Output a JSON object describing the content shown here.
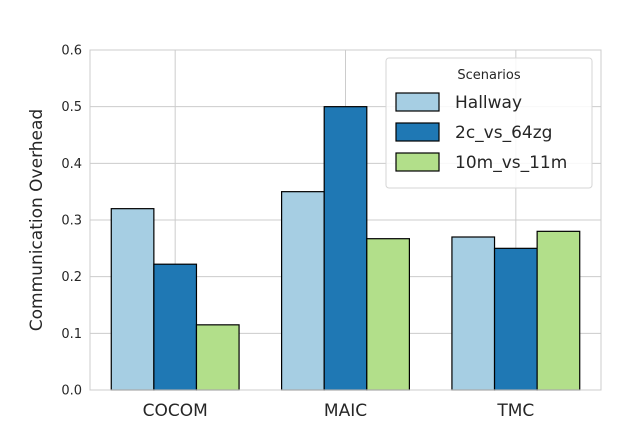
{
  "chart_data": {
    "type": "bar",
    "categories": [
      "COCOM",
      "MAIC",
      "TMC"
    ],
    "series": [
      {
        "name": "Hallway",
        "values": [
          0.32,
          0.35,
          0.27
        ],
        "color": "#a6cee3"
      },
      {
        "name": "2c_vs_64zg",
        "values": [
          0.222,
          0.5,
          0.25
        ],
        "color": "#1f78b4"
      },
      {
        "name": "10m_vs_11m",
        "values": [
          0.115,
          0.267,
          0.28
        ],
        "color": "#b2df8a"
      }
    ],
    "title": "",
    "xlabel": "",
    "ylabel": "Communication Overhead",
    "ylim": [
      0,
      0.6
    ],
    "yticks": [
      "0.0",
      "0.1",
      "0.2",
      "0.3",
      "0.4",
      "0.5",
      "0.6"
    ],
    "grid": true,
    "legend": {
      "title": "Scenarios",
      "placement": "top-right"
    }
  }
}
